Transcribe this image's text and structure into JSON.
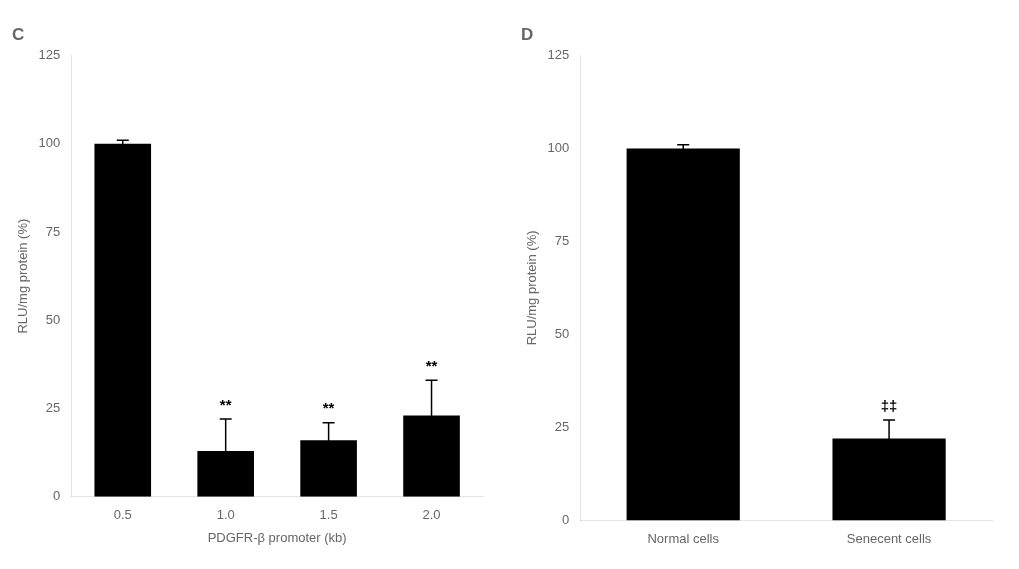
{
  "chart_data": [
    {
      "type": "bar",
      "title": "C",
      "categories": [
        "0.5",
        "1.0",
        "1.5",
        "2.0"
      ],
      "values": [
        100,
        13,
        16,
        23
      ],
      "errors": [
        1,
        9,
        5,
        10
      ],
      "color": "#000000",
      "xlabel": "PDGFR-β promoter (kb)",
      "ylabel": "RLU/mg protein (%)",
      "ylim": [
        0,
        125
      ],
      "yticks": [
        0,
        25,
        50,
        75,
        100,
        125
      ],
      "grid": false,
      "annotations": [
        {
          "category": "1.0",
          "text": "**"
        },
        {
          "category": "1.5",
          "text": "**"
        },
        {
          "category": "2.0",
          "text": "**"
        }
      ]
    },
    {
      "type": "bar",
      "title": "D",
      "categories": [
        "Normal cells",
        "Senecent cells"
      ],
      "values": [
        100,
        22
      ],
      "errors": [
        1,
        5
      ],
      "color": "#000000",
      "ylabel": "RLU/mg protein (%)",
      "ylim": [
        0,
        125
      ],
      "yticks": [
        0,
        25,
        50,
        75,
        100,
        125
      ],
      "grid": false,
      "annotations": [
        {
          "category": "Senecent cells",
          "text": "‡‡"
        }
      ]
    }
  ]
}
